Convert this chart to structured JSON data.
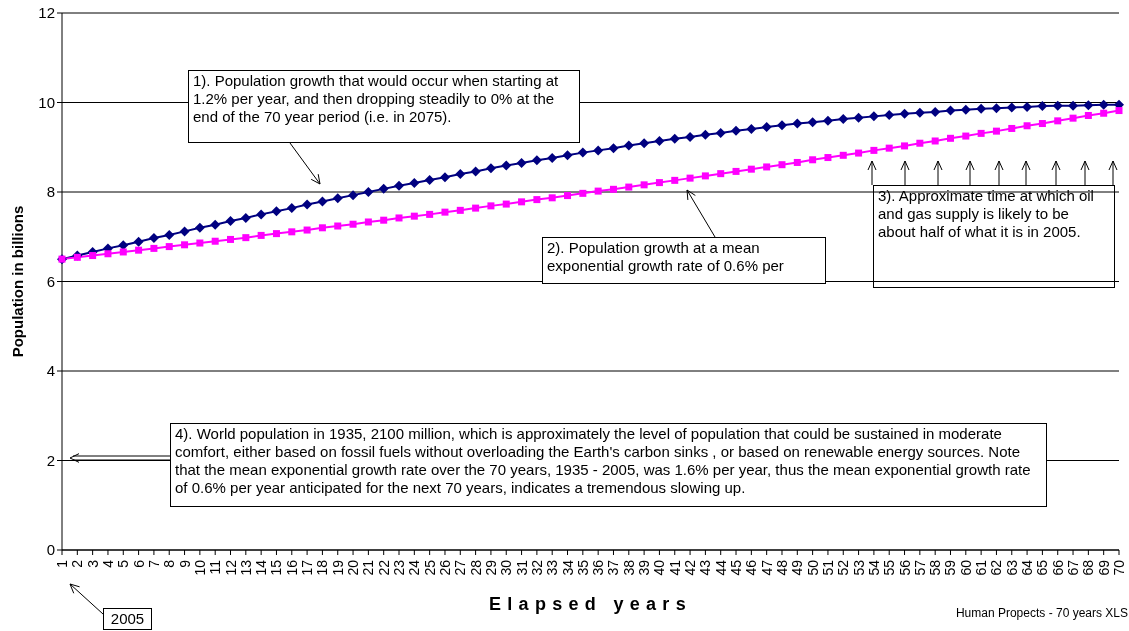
{
  "chart_data": {
    "type": "line",
    "xlabel": "Elapsed years",
    "ylabel": "Population in billions",
    "categories": [
      "1",
      "2",
      "3",
      "4",
      "5",
      "6",
      "7",
      "8",
      "9",
      "10",
      "11",
      "12",
      "13",
      "14",
      "15",
      "16",
      "17",
      "18",
      "19",
      "20",
      "21",
      "22",
      "23",
      "24",
      "25",
      "26",
      "27",
      "28",
      "29",
      "30",
      "31",
      "32",
      "33",
      "34",
      "35",
      "36",
      "37",
      "38",
      "39",
      "40",
      "41",
      "42",
      "43",
      "44",
      "45",
      "46",
      "47",
      "48",
      "49",
      "50",
      "51",
      "52",
      "53",
      "54",
      "55",
      "56",
      "57",
      "58",
      "59",
      "60",
      "61",
      "62",
      "63",
      "64",
      "65",
      "66",
      "67",
      "68",
      "69",
      "70"
    ],
    "series": [
      {
        "color": "#000080",
        "marker": "diamond",
        "values": [
          6.5,
          6.58,
          6.66,
          6.74,
          6.81,
          6.89,
          6.97,
          7.04,
          7.12,
          7.2,
          7.27,
          7.35,
          7.42,
          7.5,
          7.57,
          7.64,
          7.72,
          7.79,
          7.86,
          7.93,
          8.0,
          8.07,
          8.14,
          8.2,
          8.27,
          8.33,
          8.4,
          8.46,
          8.53,
          8.59,
          8.65,
          8.71,
          8.76,
          8.82,
          8.88,
          8.93,
          8.98,
          9.04,
          9.09,
          9.14,
          9.19,
          9.23,
          9.28,
          9.32,
          9.37,
          9.41,
          9.45,
          9.49,
          9.53,
          9.56,
          9.59,
          9.63,
          9.66,
          9.69,
          9.72,
          9.75,
          9.77,
          9.79,
          9.82,
          9.84,
          9.86,
          9.87,
          9.89,
          9.9,
          9.92,
          9.93,
          9.93,
          9.94,
          9.95,
          9.95
        ]
      },
      {
        "color": "#ff00ff",
        "marker": "square",
        "values": [
          6.5,
          6.54,
          6.58,
          6.62,
          6.66,
          6.7,
          6.74,
          6.78,
          6.82,
          6.86,
          6.9,
          6.94,
          6.98,
          7.03,
          7.07,
          7.11,
          7.15,
          7.2,
          7.24,
          7.28,
          7.33,
          7.37,
          7.42,
          7.46,
          7.5,
          7.55,
          7.59,
          7.64,
          7.69,
          7.73,
          7.78,
          7.83,
          7.87,
          7.92,
          7.97,
          8.02,
          8.06,
          8.11,
          8.16,
          8.21,
          8.26,
          8.31,
          8.36,
          8.41,
          8.46,
          8.51,
          8.56,
          8.61,
          8.66,
          8.72,
          8.77,
          8.82,
          8.87,
          8.93,
          8.98,
          9.03,
          9.09,
          9.14,
          9.2,
          9.25,
          9.31,
          9.36,
          9.42,
          9.48,
          9.53,
          9.59,
          9.65,
          9.71,
          9.76,
          9.82
        ]
      }
    ],
    "ylim": [
      0,
      12
    ],
    "yticks": [
      0,
      2,
      4,
      6,
      8,
      10,
      12
    ],
    "grid": "y",
    "annotations": [
      "1).  Population growth that would occur when starting at 1.2% per year, and then dropping steadily to 0% at the end of the 70 year period (i.e. in 2075).",
      "2).  Population growth at a mean exponential growth rate of 0.6% per",
      "3).  Approximate time at which oil and gas supply is likely to be about half of what it is in 2005.",
      "4).  World population in 1935, 2100 million, which is approximately the level of population that could be sustained in moderate comfort, either based on fossil fuels without overloading the Earth's carbon sinks , or based on renewable energy sources.  Note that the mean exponential growth rate over the 70 years, 1935 - 2005, was 1.6% per year, thus the mean exponential growth rate of 0.6% per year anticipated for the next 70 years, indicates a tremendous slowing up.",
      "2005",
      "Human Propects - 70 years XLS"
    ]
  }
}
